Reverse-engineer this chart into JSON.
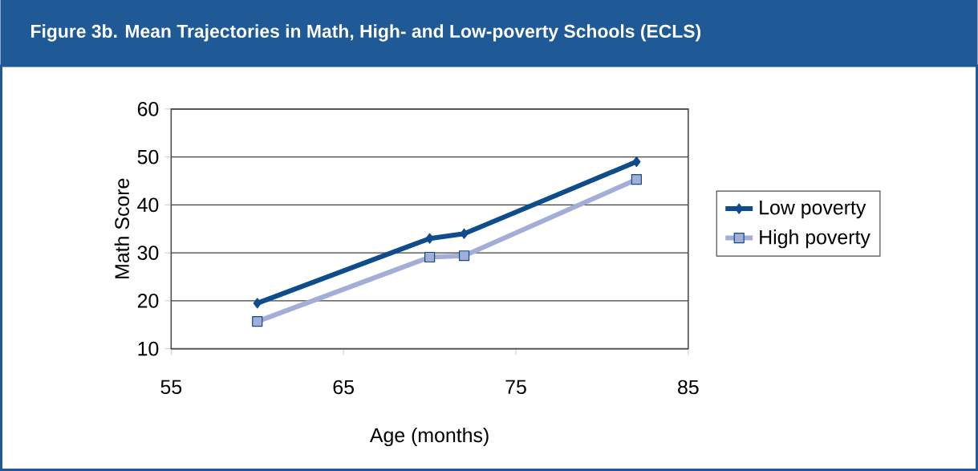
{
  "chart_data": {
    "type": "line",
    "title": "Figure 3b. Mean Trajectories in Math, High- and Low-poverty Schools (ECLS)",
    "xlabel": "Age (months)",
    "ylabel": "Math Score",
    "x": [
      60,
      70,
      72,
      82
    ],
    "series": [
      {
        "name": "Low poverty",
        "color": "#0e4c8c",
        "marker": "diamond",
        "values": [
          19.5,
          33,
          34,
          49
        ]
      },
      {
        "name": "High poverty",
        "color": "#a3aed6",
        "marker": "square",
        "values": [
          15.7,
          29.1,
          29.4,
          45.3
        ]
      }
    ],
    "xlim": [
      55,
      85
    ],
    "ylim": [
      10,
      60
    ],
    "xticks": [
      55,
      65,
      75,
      85
    ],
    "yticks": [
      10,
      20,
      30,
      40,
      50,
      60
    ],
    "grid": "y",
    "legend": "right",
    "line_style": "solid"
  }
}
